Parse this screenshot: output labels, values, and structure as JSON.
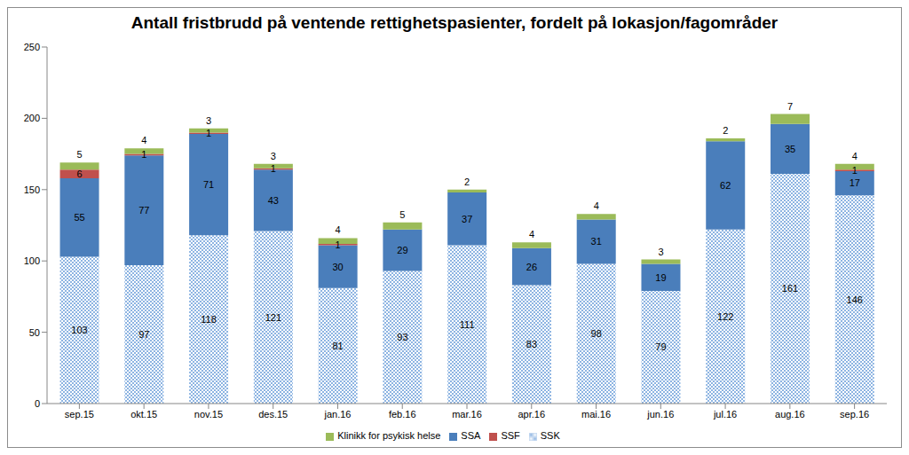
{
  "chart_data": {
    "type": "bar",
    "title": "Antall fristbrudd på ventende rettighetspasienter, fordelt på lokasjon/fagområder",
    "categories": [
      "sep.15",
      "okt.15",
      "nov.15",
      "des.15",
      "jan.16",
      "feb.16",
      "mar.16",
      "apr.16",
      "mai.16",
      "jun.16",
      "jul.16",
      "aug.16",
      "sep.16"
    ],
    "series": [
      {
        "name": "SSK",
        "color": "#8db4e2",
        "values": [
          103,
          97,
          118,
          121,
          81,
          93,
          111,
          83,
          98,
          79,
          122,
          161,
          146
        ]
      },
      {
        "name": "SSA",
        "color": "#4a7ebb",
        "values": [
          55,
          77,
          71,
          43,
          30,
          29,
          37,
          26,
          31,
          19,
          62,
          35,
          17
        ]
      },
      {
        "name": "SSF",
        "color": "#c0504d",
        "values": [
          6,
          1,
          1,
          1,
          1,
          0,
          0,
          0,
          0,
          0,
          0,
          0,
          1
        ]
      },
      {
        "name": "Klinikk for psykisk helse",
        "color": "#9bbb59",
        "values": [
          5,
          4,
          3,
          3,
          4,
          5,
          2,
          4,
          4,
          3,
          2,
          7,
          4
        ]
      }
    ],
    "ylim": [
      0,
      250
    ],
    "yticks": [
      0,
      50,
      100,
      150,
      200,
      250
    ],
    "grid": false,
    "stacked": true,
    "data_labels": true,
    "legend": "bottom"
  }
}
